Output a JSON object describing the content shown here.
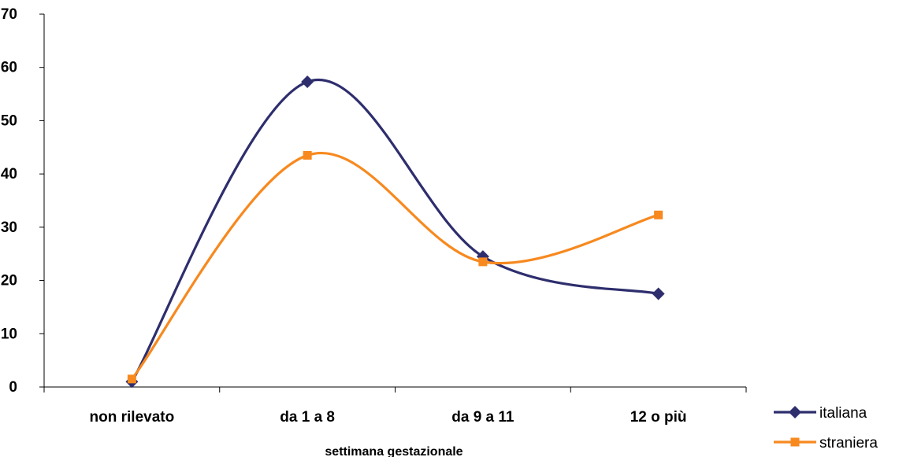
{
  "chart_data": {
    "type": "line",
    "title": "",
    "xlabel": "settimana gestazionale",
    "ylabel": "",
    "categories": [
      "non rilevato",
      "da 1 a 8",
      "da 9 a 11",
      "12 o più"
    ],
    "ylim": [
      0,
      70
    ],
    "yticks": [
      0,
      10,
      20,
      30,
      40,
      50,
      60,
      70
    ],
    "smoothed": true,
    "grid": false,
    "legend_position": "bottom-right",
    "series": [
      {
        "name": "italiana",
        "values": [
          1.0,
          57.3,
          24.5,
          17.5
        ],
        "color": "#2E2E6E",
        "marker": "diamond"
      },
      {
        "name": "straniera",
        "values": [
          1.5,
          43.5,
          23.5,
          32.3
        ],
        "color": "#F7891F",
        "marker": "square"
      }
    ]
  }
}
